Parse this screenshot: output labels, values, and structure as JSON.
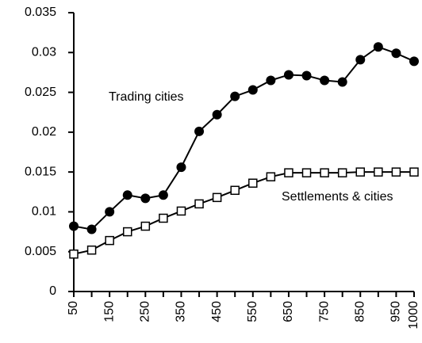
{
  "chart_data": {
    "type": "line",
    "x": [
      50,
      100,
      150,
      200,
      250,
      300,
      350,
      400,
      450,
      500,
      550,
      600,
      650,
      700,
      750,
      800,
      850,
      900,
      950,
      1000
    ],
    "series": [
      {
        "name": "Trading cities",
        "color": "#000000",
        "marker": "circle",
        "values": [
          0.0082,
          0.0078,
          0.01,
          0.0121,
          0.0117,
          0.0121,
          0.0156,
          0.0201,
          0.0222,
          0.0245,
          0.0253,
          0.0265,
          0.0272,
          0.0271,
          0.0265,
          0.0263,
          0.0291,
          0.0307,
          0.0299,
          0.0289
        ]
      },
      {
        "name": "Settlements & cities",
        "color": "#000000",
        "marker": "square",
        "values": [
          0.0047,
          0.0052,
          0.0064,
          0.0075,
          0.0082,
          0.0092,
          0.0101,
          0.011,
          0.0118,
          0.0127,
          0.0136,
          0.0144,
          0.0149,
          0.0149,
          0.0149,
          0.0149,
          0.015,
          0.015,
          0.015,
          0.015
        ]
      }
    ],
    "xlim": [
      50,
      1000
    ],
    "xticks": [
      50,
      150,
      250,
      350,
      450,
      550,
      650,
      750,
      850,
      950,
      1000
    ],
    "xminorticks": [
      100,
      200,
      300,
      400,
      500,
      600,
      700,
      800,
      900
    ],
    "ylim": [
      0,
      0.035
    ],
    "yticks": [
      0,
      0.005,
      0.01,
      0.015,
      0.02,
      0.025,
      0.03,
      0.035
    ],
    "grid": false
  }
}
